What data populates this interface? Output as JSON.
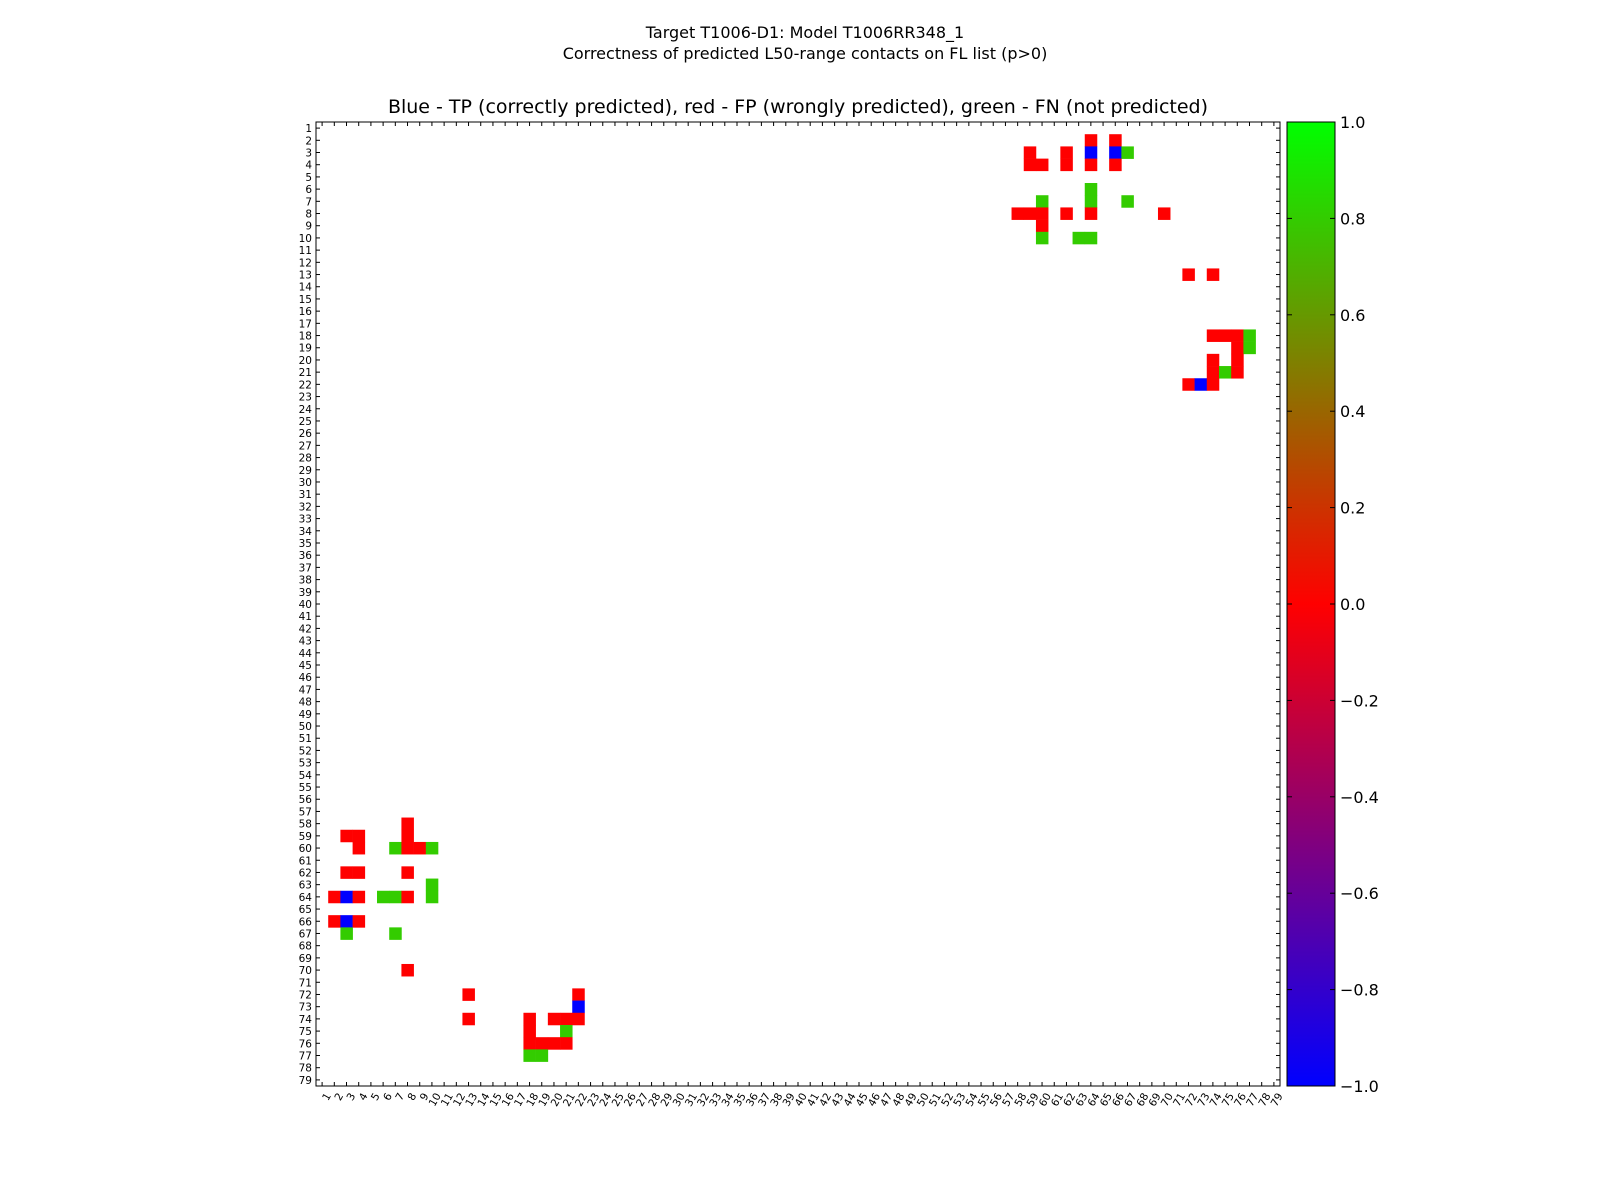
{
  "chart_data": {
    "type": "heatmap",
    "title_line1": "Target T1006-D1: Model T1006RR348_1",
    "title_line2": "Correctness of predicted L50-range contacts on FL list (p>0)",
    "subplot_title": "Blue - TP (correctly predicted), red - FP (wrongly predicted), green - FN (not predicted)",
    "xlabel": "",
    "ylabel": "",
    "x_range": [
      1,
      79
    ],
    "y_range": [
      1,
      79
    ],
    "x_ticks": [
      "1",
      "2",
      "3",
      "4",
      "5",
      "6",
      "7",
      "8",
      "9",
      "10",
      "11",
      "12",
      "13",
      "14",
      "15",
      "16",
      "17",
      "18",
      "19",
      "20",
      "21",
      "22",
      "23",
      "24",
      "25",
      "26",
      "27",
      "28",
      "29",
      "30",
      "31",
      "32",
      "33",
      "34",
      "35",
      "36",
      "37",
      "38",
      "39",
      "40",
      "41",
      "42",
      "43",
      "44",
      "45",
      "46",
      "47",
      "48",
      "49",
      "50",
      "51",
      "52",
      "53",
      "54",
      "55",
      "56",
      "57",
      "58",
      "59",
      "60",
      "61",
      "62",
      "63",
      "64",
      "65",
      "66",
      "67",
      "68",
      "69",
      "70",
      "71",
      "72",
      "73",
      "74",
      "75",
      "76",
      "77",
      "78",
      "79"
    ],
    "y_ticks": [
      "1",
      "2",
      "3",
      "4",
      "5",
      "6",
      "7",
      "8",
      "9",
      "10",
      "11",
      "12",
      "13",
      "14",
      "15",
      "16",
      "17",
      "18",
      "19",
      "20",
      "21",
      "22",
      "23",
      "24",
      "25",
      "26",
      "27",
      "28",
      "29",
      "30",
      "31",
      "32",
      "33",
      "34",
      "35",
      "36",
      "37",
      "38",
      "39",
      "40",
      "41",
      "42",
      "43",
      "44",
      "45",
      "46",
      "47",
      "48",
      "49",
      "50",
      "51",
      "52",
      "53",
      "54",
      "55",
      "56",
      "57",
      "58",
      "59",
      "60",
      "61",
      "62",
      "63",
      "64",
      "65",
      "66",
      "67",
      "68",
      "69",
      "70",
      "71",
      "72",
      "73",
      "74",
      "75",
      "76",
      "77",
      "78",
      "79"
    ],
    "colorbar": {
      "range": [
        -1.0,
        1.0
      ],
      "ticks": [
        "1.0",
        "0.8",
        "0.6",
        "0.4",
        "0.2",
        "0.0",
        "−0.2",
        "−0.4",
        "−0.6",
        "−0.8",
        "−1.0"
      ],
      "tick_values": [
        1.0,
        0.8,
        0.6,
        0.4,
        0.2,
        0.0,
        -0.2,
        -0.4,
        -0.6,
        -0.8,
        -1.0
      ],
      "colors": {
        "-1.0": "#0000ff",
        "0.0": "#ff0000",
        "1.0": "#00ff00"
      }
    },
    "cell_colors": {
      "TP": "#0000ff",
      "FP": "#ff0000",
      "FN": "#33cc00"
    },
    "cells": [
      {
        "i": 2,
        "j": 64,
        "t": "FP"
      },
      {
        "i": 2,
        "j": 66,
        "t": "FP"
      },
      {
        "i": 3,
        "j": 59,
        "t": "FP"
      },
      {
        "i": 3,
        "j": 62,
        "t": "FP"
      },
      {
        "i": 3,
        "j": 64,
        "t": "TP"
      },
      {
        "i": 3,
        "j": 66,
        "t": "TP"
      },
      {
        "i": 3,
        "j": 67,
        "t": "FN"
      },
      {
        "i": 4,
        "j": 59,
        "t": "FP"
      },
      {
        "i": 4,
        "j": 60,
        "t": "FP"
      },
      {
        "i": 4,
        "j": 62,
        "t": "FP"
      },
      {
        "i": 4,
        "j": 64,
        "t": "FP"
      },
      {
        "i": 4,
        "j": 66,
        "t": "FP"
      },
      {
        "i": 6,
        "j": 64,
        "t": "FN"
      },
      {
        "i": 7,
        "j": 60,
        "t": "FN"
      },
      {
        "i": 7,
        "j": 64,
        "t": "FN"
      },
      {
        "i": 7,
        "j": 67,
        "t": "FN"
      },
      {
        "i": 8,
        "j": 58,
        "t": "FP"
      },
      {
        "i": 8,
        "j": 59,
        "t": "FP"
      },
      {
        "i": 8,
        "j": 60,
        "t": "FP"
      },
      {
        "i": 8,
        "j": 62,
        "t": "FP"
      },
      {
        "i": 8,
        "j": 64,
        "t": "FP"
      },
      {
        "i": 8,
        "j": 70,
        "t": "FP"
      },
      {
        "i": 9,
        "j": 60,
        "t": "FP"
      },
      {
        "i": 10,
        "j": 60,
        "t": "FN"
      },
      {
        "i": 10,
        "j": 63,
        "t": "FN"
      },
      {
        "i": 10,
        "j": 64,
        "t": "FN"
      },
      {
        "i": 13,
        "j": 72,
        "t": "FP"
      },
      {
        "i": 13,
        "j": 74,
        "t": "FP"
      },
      {
        "i": 18,
        "j": 74,
        "t": "FP"
      },
      {
        "i": 18,
        "j": 75,
        "t": "FP"
      },
      {
        "i": 18,
        "j": 76,
        "t": "FP"
      },
      {
        "i": 18,
        "j": 77,
        "t": "FN"
      },
      {
        "i": 19,
        "j": 76,
        "t": "FP"
      },
      {
        "i": 19,
        "j": 77,
        "t": "FN"
      },
      {
        "i": 20,
        "j": 74,
        "t": "FP"
      },
      {
        "i": 20,
        "j": 76,
        "t": "FP"
      },
      {
        "i": 21,
        "j": 74,
        "t": "FP"
      },
      {
        "i": 21,
        "j": 75,
        "t": "FN"
      },
      {
        "i": 21,
        "j": 76,
        "t": "FP"
      },
      {
        "i": 22,
        "j": 72,
        "t": "FP"
      },
      {
        "i": 22,
        "j": 73,
        "t": "TP"
      },
      {
        "i": 22,
        "j": 74,
        "t": "FP"
      },
      {
        "i": 58,
        "j": 8,
        "t": "FP"
      },
      {
        "i": 59,
        "j": 3,
        "t": "FP"
      },
      {
        "i": 59,
        "j": 4,
        "t": "FP"
      },
      {
        "i": 59,
        "j": 8,
        "t": "FP"
      },
      {
        "i": 60,
        "j": 4,
        "t": "FP"
      },
      {
        "i": 60,
        "j": 7,
        "t": "FN"
      },
      {
        "i": 60,
        "j": 8,
        "t": "FP"
      },
      {
        "i": 60,
        "j": 9,
        "t": "FP"
      },
      {
        "i": 60,
        "j": 10,
        "t": "FN"
      },
      {
        "i": 62,
        "j": 3,
        "t": "FP"
      },
      {
        "i": 62,
        "j": 4,
        "t": "FP"
      },
      {
        "i": 62,
        "j": 8,
        "t": "FP"
      },
      {
        "i": 63,
        "j": 10,
        "t": "FN"
      },
      {
        "i": 64,
        "j": 2,
        "t": "FP"
      },
      {
        "i": 64,
        "j": 3,
        "t": "TP"
      },
      {
        "i": 64,
        "j": 4,
        "t": "FP"
      },
      {
        "i": 64,
        "j": 6,
        "t": "FN"
      },
      {
        "i": 64,
        "j": 7,
        "t": "FN"
      },
      {
        "i": 64,
        "j": 8,
        "t": "FP"
      },
      {
        "i": 64,
        "j": 10,
        "t": "FN"
      },
      {
        "i": 66,
        "j": 2,
        "t": "FP"
      },
      {
        "i": 66,
        "j": 3,
        "t": "TP"
      },
      {
        "i": 66,
        "j": 4,
        "t": "FP"
      },
      {
        "i": 67,
        "j": 3,
        "t": "FN"
      },
      {
        "i": 67,
        "j": 7,
        "t": "FN"
      },
      {
        "i": 70,
        "j": 8,
        "t": "FP"
      },
      {
        "i": 72,
        "j": 13,
        "t": "FP"
      },
      {
        "i": 72,
        "j": 22,
        "t": "FP"
      },
      {
        "i": 73,
        "j": 22,
        "t": "TP"
      },
      {
        "i": 74,
        "j": 13,
        "t": "FP"
      },
      {
        "i": 74,
        "j": 18,
        "t": "FP"
      },
      {
        "i": 74,
        "j": 20,
        "t": "FP"
      },
      {
        "i": 74,
        "j": 21,
        "t": "FP"
      },
      {
        "i": 74,
        "j": 22,
        "t": "FP"
      },
      {
        "i": 75,
        "j": 18,
        "t": "FP"
      },
      {
        "i": 75,
        "j": 21,
        "t": "FN"
      },
      {
        "i": 76,
        "j": 18,
        "t": "FP"
      },
      {
        "i": 76,
        "j": 19,
        "t": "FP"
      },
      {
        "i": 76,
        "j": 20,
        "t": "FP"
      },
      {
        "i": 76,
        "j": 21,
        "t": "FP"
      },
      {
        "i": 77,
        "j": 18,
        "t": "FN"
      },
      {
        "i": 77,
        "j": 19,
        "t": "FN"
      }
    ]
  }
}
